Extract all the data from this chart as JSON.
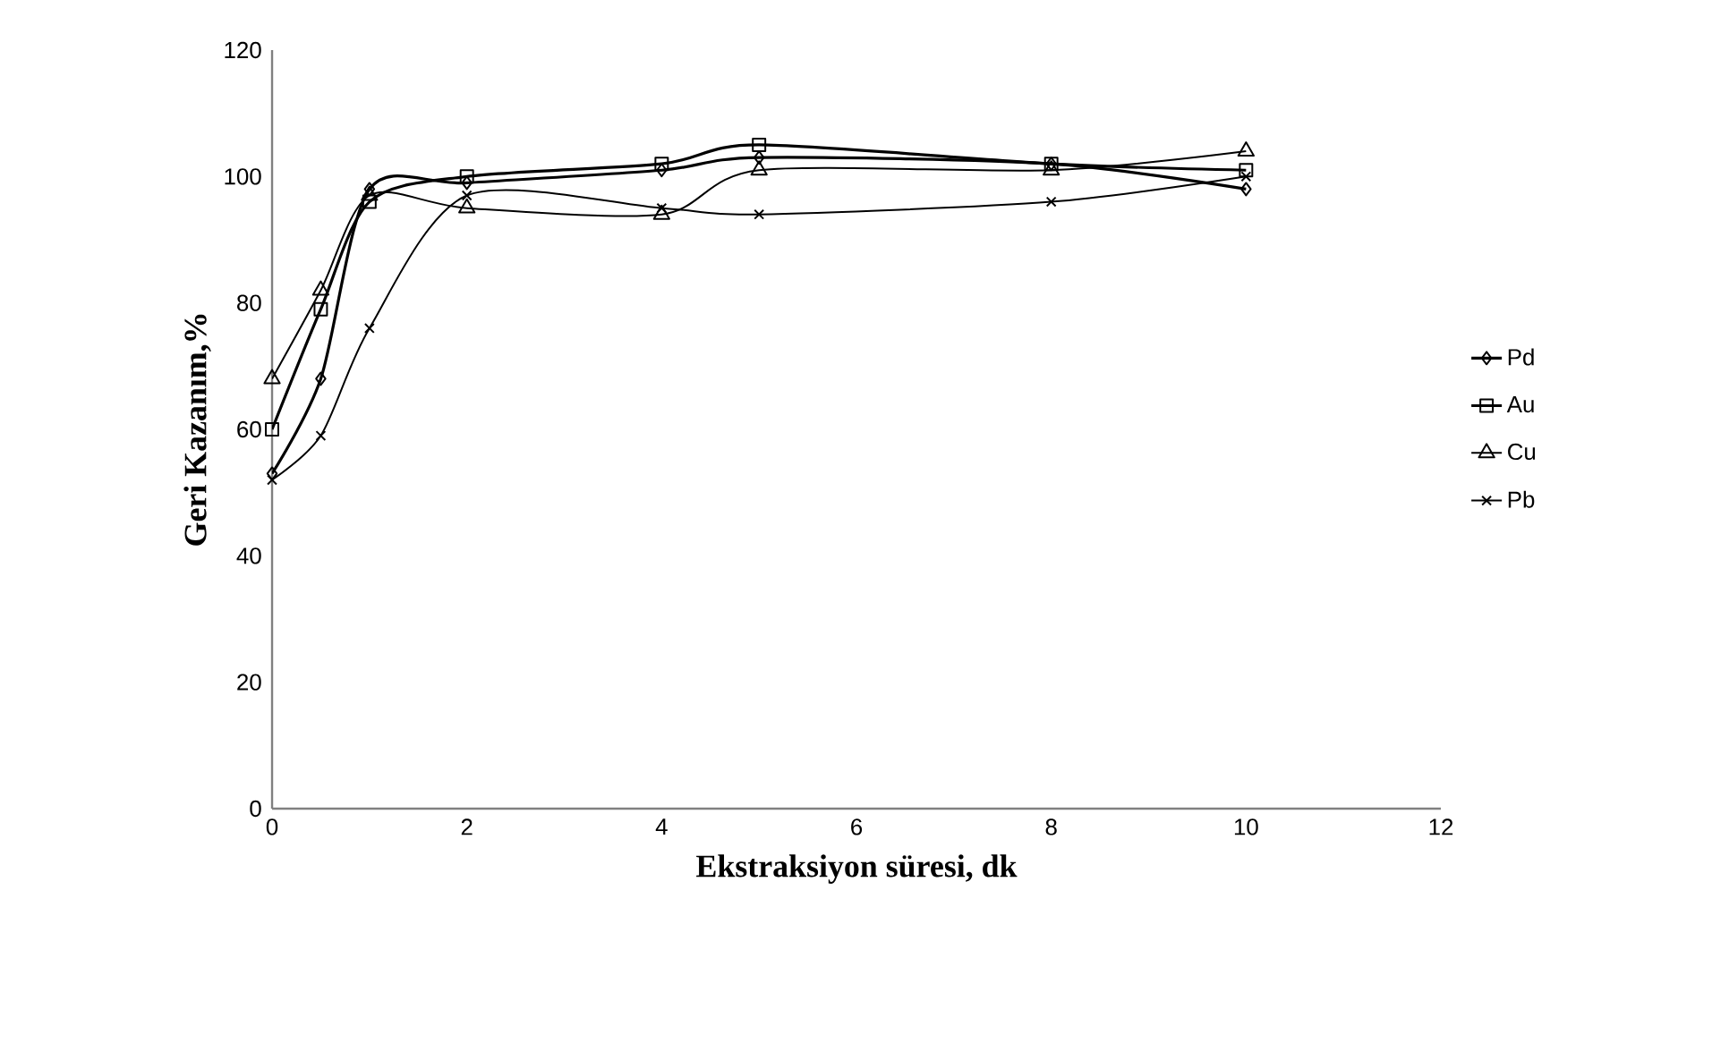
{
  "chart_data": {
    "type": "line",
    "xlabel": "Ekstraksiyon süresi, dk",
    "ylabel": "Geri Kazanım,%",
    "x": [
      0,
      0.5,
      1,
      2,
      4,
      5,
      8,
      10
    ],
    "xlim": [
      0,
      12
    ],
    "xticks": [
      0,
      2,
      4,
      6,
      8,
      10,
      12
    ],
    "ylim": [
      0,
      120
    ],
    "yticks": [
      0,
      20,
      40,
      60,
      80,
      100,
      120
    ],
    "grid": false,
    "legend": "right",
    "series": [
      {
        "name": "Pd",
        "color": "#000000",
        "marker": "diamond",
        "values": [
          53,
          68,
          98,
          99,
          101,
          103,
          102,
          98
        ]
      },
      {
        "name": "Au",
        "color": "#000000",
        "marker": "square",
        "values": [
          60,
          79,
          96,
          100,
          102,
          105,
          102,
          101
        ]
      },
      {
        "name": "Cu",
        "color": "#000000",
        "marker": "triangle",
        "values": [
          68,
          82,
          97,
          95,
          94,
          101,
          101,
          104
        ]
      },
      {
        "name": "Pb",
        "color": "#000000",
        "marker": "cross",
        "values": [
          52,
          59,
          76,
          97,
          95,
          94,
          96,
          100
        ]
      }
    ]
  }
}
